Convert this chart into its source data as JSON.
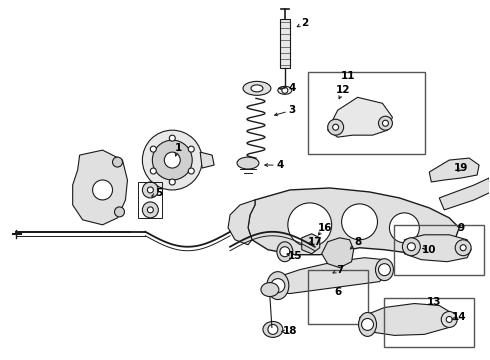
{
  "background_color": "#ffffff",
  "figure_width": 4.9,
  "figure_height": 3.6,
  "dpi": 100,
  "line_color": "#1a1a1a",
  "text_color": "#000000",
  "font_size": 7.5
}
